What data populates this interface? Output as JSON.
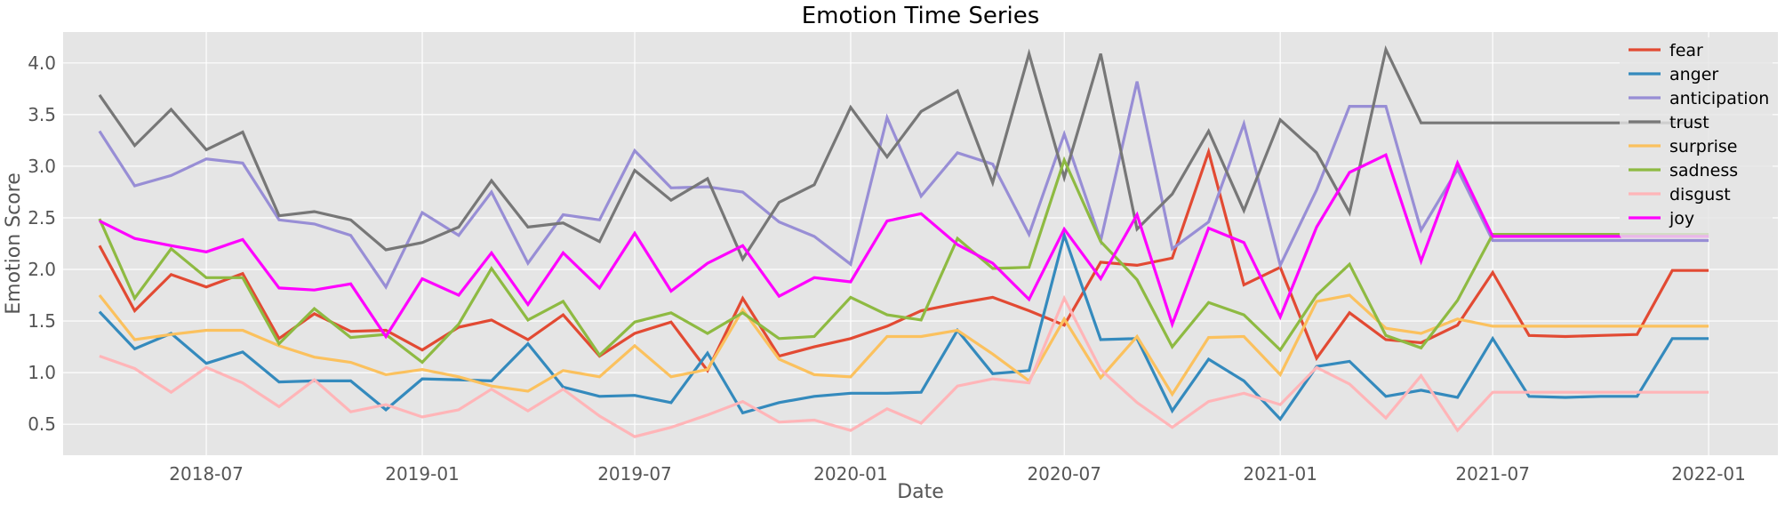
{
  "chart_data": {
    "type": "line",
    "title": "Emotion Time Series",
    "xlabel": "Date",
    "ylabel": "Emotion Score",
    "x": [
      "2018-04-01",
      "2018-05-01",
      "2018-06-01",
      "2018-07-01",
      "2018-08-01",
      "2018-09-01",
      "2018-10-01",
      "2018-11-01",
      "2018-12-01",
      "2019-01-01",
      "2019-02-01",
      "2019-03-01",
      "2019-04-01",
      "2019-05-01",
      "2019-06-01",
      "2019-07-01",
      "2019-08-01",
      "2019-09-01",
      "2019-10-01",
      "2019-11-01",
      "2019-12-01",
      "2020-01-01",
      "2020-02-01",
      "2020-03-01",
      "2020-04-01",
      "2020-05-01",
      "2020-06-01",
      "2020-07-01",
      "2020-08-01",
      "2020-09-01",
      "2020-10-01",
      "2020-11-01",
      "2020-12-01",
      "2021-01-01",
      "2021-02-01",
      "2021-03-01",
      "2021-04-01",
      "2021-05-01",
      "2021-06-01",
      "2021-07-01",
      "2021-08-01",
      "2021-09-01",
      "2021-10-01",
      "2021-11-01",
      "2021-12-01",
      "2022-01-01"
    ],
    "xlim": [
      "2018-03-01",
      "2022-03-01"
    ],
    "ylim": [
      0.2,
      4.3
    ],
    "x_ticks": [
      "2018-07-01",
      "2019-01-01",
      "2019-07-01",
      "2020-01-01",
      "2020-07-01",
      "2021-01-01",
      "2021-07-01",
      "2022-01-01"
    ],
    "x_tick_labels": [
      "2018-07",
      "2019-01",
      "2019-07",
      "2020-01",
      "2020-07",
      "2021-01",
      "2021-07",
      "2022-01"
    ],
    "y_ticks": [
      0.5,
      1.0,
      1.5,
      2.0,
      2.5,
      3.0,
      3.5,
      4.0
    ],
    "y_tick_labels": [
      "0.5",
      "1.0",
      "1.5",
      "2.0",
      "2.5",
      "3.0",
      "3.5",
      "4.0"
    ],
    "grid": true,
    "legend_position": "top-right",
    "series": [
      {
        "name": "fear",
        "color": "#E24A33",
        "values": [
          2.23,
          1.6,
          1.95,
          1.83,
          1.96,
          1.33,
          1.57,
          1.4,
          1.41,
          1.22,
          1.44,
          1.51,
          1.32,
          1.56,
          1.16,
          1.38,
          1.49,
          1.02,
          1.72,
          1.16,
          1.25,
          1.33,
          1.45,
          1.6,
          1.67,
          1.73,
          1.6,
          1.46,
          2.07,
          2.04,
          2.11,
          3.14,
          1.85,
          2.02,
          1.14,
          1.58,
          1.32,
          1.29,
          1.46,
          1.97,
          1.36,
          1.35,
          1.36,
          1.37,
          1.99,
          1.99
        ]
      },
      {
        "name": "anger",
        "color": "#348ABD",
        "values": [
          1.59,
          1.23,
          1.38,
          1.09,
          1.2,
          0.91,
          0.92,
          0.92,
          0.64,
          0.94,
          0.93,
          0.92,
          1.28,
          0.86,
          0.77,
          0.78,
          0.71,
          1.19,
          0.61,
          0.71,
          0.77,
          0.8,
          0.8,
          0.81,
          1.41,
          0.99,
          1.02,
          2.33,
          1.32,
          1.33,
          0.63,
          1.13,
          0.92,
          0.55,
          1.06,
          1.11,
          0.77,
          0.83,
          0.76,
          1.33,
          0.77,
          0.76,
          0.77,
          0.77,
          1.33,
          1.33
        ]
      },
      {
        "name": "anticipation",
        "color": "#988ED5",
        "values": [
          3.34,
          2.81,
          2.91,
          3.07,
          3.03,
          2.48,
          2.44,
          2.33,
          1.83,
          2.55,
          2.33,
          2.75,
          2.06,
          2.53,
          2.48,
          3.15,
          2.79,
          2.8,
          2.75,
          2.46,
          2.32,
          2.05,
          3.47,
          2.71,
          3.13,
          3.02,
          2.34,
          3.31,
          2.28,
          3.82,
          2.2,
          2.46,
          3.41,
          2.04,
          2.77,
          3.58,
          3.58,
          2.38,
          2.97,
          2.28,
          2.28,
          2.28,
          2.28,
          2.28,
          2.28,
          2.28
        ]
      },
      {
        "name": "trust",
        "color": "#777777",
        "values": [
          3.69,
          3.2,
          3.55,
          3.16,
          3.33,
          2.52,
          2.56,
          2.48,
          2.19,
          2.26,
          2.41,
          2.86,
          2.41,
          2.45,
          2.27,
          2.96,
          2.67,
          2.88,
          2.1,
          2.65,
          2.82,
          3.57,
          3.09,
          3.53,
          3.73,
          2.84,
          4.09,
          2.89,
          4.09,
          2.39,
          2.73,
          3.34,
          2.57,
          3.45,
          3.13,
          2.55,
          4.13,
          3.42,
          3.42,
          3.42,
          3.42,
          3.42,
          3.42,
          3.42,
          3.42,
          3.42
        ]
      },
      {
        "name": "surprise",
        "color": "#FBC15E",
        "values": [
          1.75,
          1.32,
          1.37,
          1.41,
          1.41,
          1.26,
          1.15,
          1.1,
          0.98,
          1.03,
          0.96,
          0.87,
          0.82,
          1.02,
          0.96,
          1.26,
          0.96,
          1.03,
          1.61,
          1.13,
          0.98,
          0.96,
          1.35,
          1.35,
          1.41,
          1.18,
          0.92,
          1.52,
          0.95,
          1.35,
          0.79,
          1.34,
          1.35,
          0.98,
          1.69,
          1.75,
          1.43,
          1.38,
          1.52,
          1.45,
          1.45,
          1.45,
          1.45,
          1.45,
          1.45,
          1.45
        ]
      },
      {
        "name": "sadness",
        "color": "#8EBA42",
        "values": [
          2.49,
          1.72,
          2.2,
          1.92,
          1.92,
          1.28,
          1.62,
          1.34,
          1.37,
          1.1,
          1.47,
          2.01,
          1.51,
          1.69,
          1.17,
          1.49,
          1.58,
          1.38,
          1.58,
          1.33,
          1.35,
          1.73,
          1.56,
          1.51,
          2.3,
          2.01,
          2.02,
          3.06,
          2.27,
          1.9,
          1.25,
          1.68,
          1.56,
          1.22,
          1.75,
          2.05,
          1.36,
          1.24,
          1.7,
          2.34,
          2.34,
          2.34,
          2.34,
          2.34,
          2.34,
          2.34
        ]
      },
      {
        "name": "disgust",
        "color": "#FFB5B8",
        "values": [
          1.16,
          1.04,
          0.81,
          1.05,
          0.9,
          0.67,
          0.93,
          0.62,
          0.69,
          0.57,
          0.64,
          0.84,
          0.63,
          0.84,
          0.58,
          0.38,
          0.47,
          0.59,
          0.72,
          0.52,
          0.54,
          0.44,
          0.65,
          0.51,
          0.87,
          0.94,
          0.9,
          1.72,
          1.03,
          0.71,
          0.47,
          0.72,
          0.8,
          0.69,
          1.05,
          0.89,
          0.56,
          0.97,
          0.44,
          0.81,
          0.81,
          0.81,
          0.81,
          0.81,
          0.81,
          0.81
        ]
      },
      {
        "name": "joy",
        "color": "#FF00FF",
        "values": [
          2.47,
          2.3,
          2.23,
          2.17,
          2.29,
          1.82,
          1.8,
          1.86,
          1.35,
          1.91,
          1.75,
          2.16,
          1.66,
          2.16,
          1.82,
          2.35,
          1.79,
          2.06,
          2.23,
          1.74,
          1.92,
          1.88,
          2.47,
          2.54,
          2.24,
          2.06,
          1.71,
          2.39,
          1.91,
          2.53,
          1.47,
          2.4,
          2.26,
          1.54,
          2.41,
          2.94,
          3.11,
          2.08,
          3.03,
          2.32,
          2.32,
          2.32,
          2.32,
          2.32,
          2.32,
          2.32
        ]
      }
    ]
  }
}
